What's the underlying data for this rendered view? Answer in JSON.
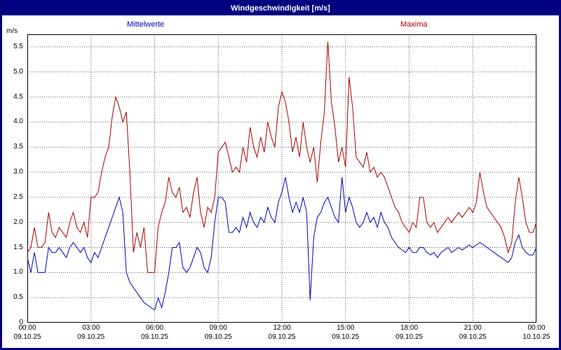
{
  "window": {
    "title": "Windgeschwindigkeit [m/s]"
  },
  "legend": {
    "mean_label": "Mittelwerte",
    "max_label": "Maxima"
  },
  "colors": {
    "titlebar": "#000080",
    "border": "#000080",
    "mean_line": "#0000bb",
    "max_line": "#aa0000",
    "grid": "#555555"
  },
  "chart_data": {
    "type": "line",
    "title": "Windgeschwindigkeit [m/s]",
    "ylabel": "m/s",
    "ylim": [
      0,
      5.75
    ],
    "grid": true,
    "legend_position": "top",
    "y_ticks": [
      0,
      0.5,
      1.0,
      1.5,
      2.0,
      2.5,
      3.0,
      3.5,
      4.0,
      4.5,
      5.0,
      5.5
    ],
    "y_tick_labels": [
      "0",
      "0.5",
      "1.0",
      "1.5",
      "2.0",
      "2.5",
      "3.0",
      "3.5",
      "4.0",
      "4.5",
      "5.0",
      "5.5"
    ],
    "x_gridline_hours": [
      3,
      6,
      9,
      12,
      15,
      18,
      21
    ],
    "x_ticks": [
      {
        "hour": 0,
        "time": "00:00",
        "date": "09.10.25"
      },
      {
        "hour": 3,
        "time": "03:00",
        "date": "09.10.25"
      },
      {
        "hour": 6,
        "time": "06:00",
        "date": "09.10.25"
      },
      {
        "hour": 9,
        "time": "09:00",
        "date": "09.10.25"
      },
      {
        "hour": 12,
        "time": "12:00",
        "date": "09.10.25"
      },
      {
        "hour": 15,
        "time": "15:00",
        "date": "09.10.25"
      },
      {
        "hour": 18,
        "time": "18:00",
        "date": "09.10.25"
      },
      {
        "hour": 21,
        "time": "21:00",
        "date": "09.10.25"
      },
      {
        "hour": 24,
        "time": "00:00",
        "date": "10.10.25"
      }
    ],
    "x_interval_minutes": 10,
    "series": [
      {
        "name": "Mittelwerte",
        "color": "#0000bb",
        "values": [
          1.3,
          1.0,
          1.4,
          1.0,
          1.0,
          1.0,
          1.5,
          1.4,
          1.4,
          1.5,
          1.4,
          1.3,
          1.5,
          1.6,
          1.5,
          1.4,
          1.5,
          1.3,
          1.2,
          1.4,
          1.3,
          1.5,
          1.7,
          1.9,
          2.1,
          2.3,
          2.5,
          2.2,
          1.0,
          0.8,
          0.7,
          0.6,
          0.5,
          0.4,
          0.35,
          0.3,
          0.25,
          0.5,
          0.3,
          0.6,
          1.0,
          1.5,
          1.5,
          1.6,
          1.1,
          1.0,
          1.1,
          1.3,
          1.5,
          1.4,
          1.1,
          1.0,
          1.3,
          2.0,
          2.5,
          2.5,
          2.4,
          1.8,
          1.8,
          1.9,
          1.8,
          2.1,
          1.9,
          2.2,
          2.0,
          1.9,
          2.1,
          2.0,
          2.3,
          2.1,
          2.0,
          2.4,
          2.6,
          2.9,
          2.5,
          2.2,
          2.4,
          2.2,
          2.5,
          2.2,
          0.45,
          1.7,
          2.1,
          2.2,
          2.4,
          2.5,
          2.3,
          2.1,
          2.0,
          2.9,
          2.2,
          2.5,
          2.3,
          2.0,
          1.9,
          2.0,
          2.2,
          2.0,
          2.1,
          1.9,
          2.2,
          2.0,
          1.9,
          1.7,
          1.6,
          1.5,
          1.45,
          1.4,
          1.5,
          1.4,
          1.4,
          1.5,
          1.5,
          1.4,
          1.35,
          1.4,
          1.3,
          1.4,
          1.45,
          1.5,
          1.4,
          1.45,
          1.5,
          1.45,
          1.5,
          1.55,
          1.5,
          1.55,
          1.6,
          1.55,
          1.5,
          1.45,
          1.4,
          1.35,
          1.3,
          1.25,
          1.2,
          1.3,
          1.6,
          1.75,
          1.5,
          1.4,
          1.35,
          1.35,
          1.5
        ]
      },
      {
        "name": "Maxima",
        "color": "#aa0000",
        "values": [
          1.4,
          1.5,
          1.9,
          1.5,
          1.5,
          1.6,
          2.2,
          1.8,
          1.7,
          1.9,
          1.8,
          1.7,
          2.0,
          2.2,
          1.9,
          1.8,
          2.0,
          1.7,
          2.5,
          2.5,
          2.6,
          3.0,
          3.3,
          3.5,
          4.1,
          4.5,
          4.3,
          4.0,
          4.2,
          3.0,
          1.4,
          1.8,
          1.5,
          1.9,
          1.0,
          1.0,
          1.0,
          1.9,
          2.2,
          2.4,
          2.9,
          2.6,
          2.5,
          2.7,
          2.2,
          2.3,
          2.1,
          2.6,
          2.9,
          2.2,
          1.9,
          2.3,
          2.2,
          2.5,
          3.4,
          3.5,
          3.6,
          3.3,
          3.0,
          3.1,
          3.0,
          3.5,
          3.2,
          3.9,
          3.5,
          3.3,
          3.7,
          3.4,
          4.0,
          3.7,
          3.5,
          4.3,
          4.6,
          4.4,
          4.0,
          3.4,
          3.7,
          3.3,
          4.0,
          3.5,
          3.2,
          3.5,
          2.8,
          3.6,
          4.2,
          5.6,
          4.4,
          3.9,
          3.2,
          3.5,
          3.1,
          4.9,
          4.3,
          3.3,
          3.2,
          3.1,
          3.4,
          3.0,
          3.1,
          2.9,
          3.0,
          2.9,
          2.7,
          2.5,
          2.3,
          2.2,
          2.0,
          1.9,
          1.8,
          2.0,
          1.9,
          2.5,
          2.5,
          2.0,
          1.9,
          2.0,
          1.8,
          1.9,
          2.0,
          2.1,
          2.0,
          2.1,
          2.2,
          2.1,
          2.2,
          2.3,
          2.2,
          2.4,
          3.0,
          2.6,
          2.3,
          2.2,
          2.1,
          2.0,
          1.9,
          1.7,
          1.4,
          1.6,
          2.4,
          2.9,
          2.5,
          2.0,
          1.8,
          1.8,
          2.0
        ]
      }
    ]
  }
}
